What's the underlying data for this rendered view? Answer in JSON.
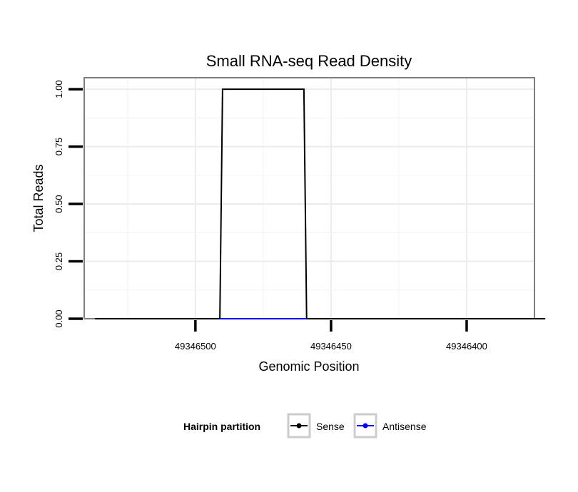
{
  "chart_data": {
    "type": "line",
    "title": "Small RNA-seq Read Density",
    "xlabel": "Genomic Position",
    "ylabel": "Total Reads",
    "x_reversed": true,
    "xlim": [
      49346541,
      49346375
    ],
    "ylim": [
      0,
      1.05
    ],
    "x_ticks": [
      49346500,
      49346450,
      49346400
    ],
    "x_tick_labels": [
      "49346500",
      "49346450",
      "49346400"
    ],
    "y_ticks": [
      0,
      0.25,
      0.5,
      0.75,
      1.0
    ],
    "y_tick_labels": [
      "0.00",
      "0.25",
      "0.50",
      "0.75",
      "1.00"
    ],
    "grid": true,
    "legend": {
      "title": "Hairpin partition",
      "placement": "bottom"
    },
    "series": [
      {
        "name": "Sense",
        "color": "#000000",
        "points": [
          [
            49346537,
            0
          ],
          [
            49346491,
            0
          ],
          [
            49346490,
            1
          ],
          [
            49346460,
            1
          ],
          [
            49346459,
            0
          ],
          [
            49346371,
            0
          ]
        ]
      },
      {
        "name": "Antisense",
        "color": "#0000ff",
        "points": [
          [
            49346491,
            0
          ],
          [
            49346459,
            0
          ]
        ]
      }
    ]
  }
}
